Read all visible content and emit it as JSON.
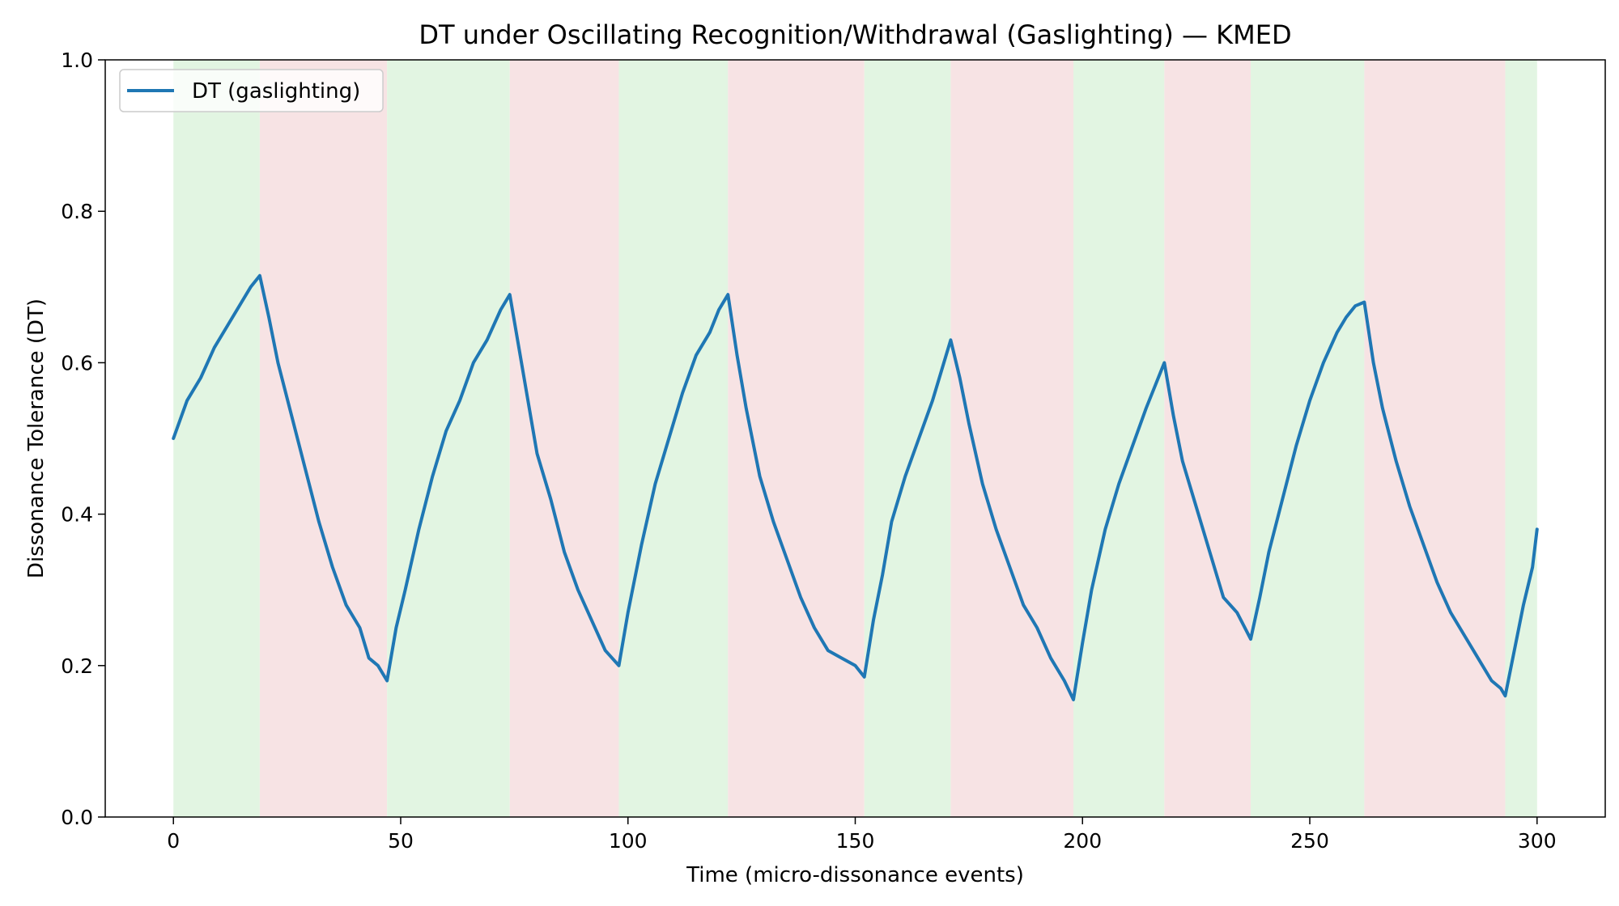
{
  "chart_data": {
    "type": "line",
    "title": "DT under Oscillating Recognition/Withdrawal (Gaslighting) — KMED",
    "xlabel": "Time (micro-dissonance events)",
    "ylabel": "Dissonance Tolerance (DT)",
    "xlim": [
      -15,
      315
    ],
    "ylim": [
      0.0,
      1.0
    ],
    "x_ticks": [
      0,
      50,
      100,
      150,
      200,
      250,
      300
    ],
    "y_ticks": [
      0.0,
      0.2,
      0.4,
      0.6,
      0.8,
      1.0
    ],
    "x_tick_labels": [
      "0",
      "50",
      "100",
      "150",
      "200",
      "250",
      "300"
    ],
    "y_tick_labels": [
      "0.0",
      "0.2",
      "0.4",
      "0.6",
      "0.8",
      "1.0"
    ],
    "grid": false,
    "legend_position": "upper-left",
    "phases": [
      {
        "type": "recognition",
        "start": 0,
        "end": 19
      },
      {
        "type": "withdrawal",
        "start": 19,
        "end": 47
      },
      {
        "type": "recognition",
        "start": 47,
        "end": 74
      },
      {
        "type": "withdrawal",
        "start": 74,
        "end": 98
      },
      {
        "type": "recognition",
        "start": 98,
        "end": 122
      },
      {
        "type": "withdrawal",
        "start": 122,
        "end": 152
      },
      {
        "type": "recognition",
        "start": 152,
        "end": 171
      },
      {
        "type": "withdrawal",
        "start": 171,
        "end": 198
      },
      {
        "type": "recognition",
        "start": 198,
        "end": 218
      },
      {
        "type": "withdrawal",
        "start": 218,
        "end": 237
      },
      {
        "type": "recognition",
        "start": 237,
        "end": 262
      },
      {
        "type": "withdrawal",
        "start": 262,
        "end": 293
      },
      {
        "type": "recognition",
        "start": 293,
        "end": 300
      }
    ],
    "phase_colors": {
      "recognition": "#e2f5e2",
      "withdrawal": "#f7e3e4"
    },
    "series": [
      {
        "name": "DT (gaslighting)",
        "color": "#1f77b4",
        "points": [
          [
            0,
            0.5
          ],
          [
            3,
            0.55
          ],
          [
            6,
            0.58
          ],
          [
            9,
            0.62
          ],
          [
            12,
            0.65
          ],
          [
            15,
            0.68
          ],
          [
            17,
            0.7
          ],
          [
            19,
            0.715
          ],
          [
            21,
            0.66
          ],
          [
            23,
            0.6
          ],
          [
            26,
            0.53
          ],
          [
            29,
            0.46
          ],
          [
            32,
            0.39
          ],
          [
            35,
            0.33
          ],
          [
            38,
            0.28
          ],
          [
            41,
            0.25
          ],
          [
            43,
            0.21
          ],
          [
            45,
            0.2
          ],
          [
            47,
            0.18
          ],
          [
            49,
            0.25
          ],
          [
            51,
            0.3
          ],
          [
            54,
            0.38
          ],
          [
            57,
            0.45
          ],
          [
            60,
            0.51
          ],
          [
            63,
            0.55
          ],
          [
            66,
            0.6
          ],
          [
            69,
            0.63
          ],
          [
            72,
            0.67
          ],
          [
            74,
            0.69
          ],
          [
            76,
            0.62
          ],
          [
            78,
            0.55
          ],
          [
            80,
            0.48
          ],
          [
            83,
            0.42
          ],
          [
            86,
            0.35
          ],
          [
            89,
            0.3
          ],
          [
            92,
            0.26
          ],
          [
            95,
            0.22
          ],
          [
            98,
            0.2
          ],
          [
            100,
            0.27
          ],
          [
            103,
            0.36
          ],
          [
            106,
            0.44
          ],
          [
            109,
            0.5
          ],
          [
            112,
            0.56
          ],
          [
            115,
            0.61
          ],
          [
            118,
            0.64
          ],
          [
            120,
            0.67
          ],
          [
            122,
            0.69
          ],
          [
            124,
            0.61
          ],
          [
            126,
            0.54
          ],
          [
            129,
            0.45
          ],
          [
            132,
            0.39
          ],
          [
            135,
            0.34
          ],
          [
            138,
            0.29
          ],
          [
            141,
            0.25
          ],
          [
            144,
            0.22
          ],
          [
            147,
            0.21
          ],
          [
            150,
            0.2
          ],
          [
            152,
            0.185
          ],
          [
            154,
            0.26
          ],
          [
            156,
            0.32
          ],
          [
            158,
            0.39
          ],
          [
            161,
            0.45
          ],
          [
            164,
            0.5
          ],
          [
            167,
            0.55
          ],
          [
            169,
            0.59
          ],
          [
            171,
            0.63
          ],
          [
            173,
            0.58
          ],
          [
            175,
            0.52
          ],
          [
            178,
            0.44
          ],
          [
            181,
            0.38
          ],
          [
            184,
            0.33
          ],
          [
            187,
            0.28
          ],
          [
            190,
            0.25
          ],
          [
            193,
            0.21
          ],
          [
            196,
            0.18
          ],
          [
            198,
            0.155
          ],
          [
            200,
            0.23
          ],
          [
            202,
            0.3
          ],
          [
            205,
            0.38
          ],
          [
            208,
            0.44
          ],
          [
            211,
            0.49
          ],
          [
            214,
            0.54
          ],
          [
            216,
            0.57
          ],
          [
            218,
            0.6
          ],
          [
            220,
            0.53
          ],
          [
            222,
            0.47
          ],
          [
            225,
            0.41
          ],
          [
            228,
            0.35
          ],
          [
            231,
            0.29
          ],
          [
            234,
            0.27
          ],
          [
            237,
            0.235
          ],
          [
            239,
            0.29
          ],
          [
            241,
            0.35
          ],
          [
            244,
            0.42
          ],
          [
            247,
            0.49
          ],
          [
            250,
            0.55
          ],
          [
            253,
            0.6
          ],
          [
            256,
            0.64
          ],
          [
            258,
            0.66
          ],
          [
            260,
            0.675
          ],
          [
            262,
            0.68
          ],
          [
            264,
            0.6
          ],
          [
            266,
            0.54
          ],
          [
            269,
            0.47
          ],
          [
            272,
            0.41
          ],
          [
            275,
            0.36
          ],
          [
            278,
            0.31
          ],
          [
            281,
            0.27
          ],
          [
            284,
            0.24
          ],
          [
            287,
            0.21
          ],
          [
            290,
            0.18
          ],
          [
            292,
            0.17
          ],
          [
            293,
            0.16
          ],
          [
            295,
            0.22
          ],
          [
            297,
            0.28
          ],
          [
            299,
            0.33
          ],
          [
            300,
            0.38
          ]
        ]
      }
    ]
  }
}
